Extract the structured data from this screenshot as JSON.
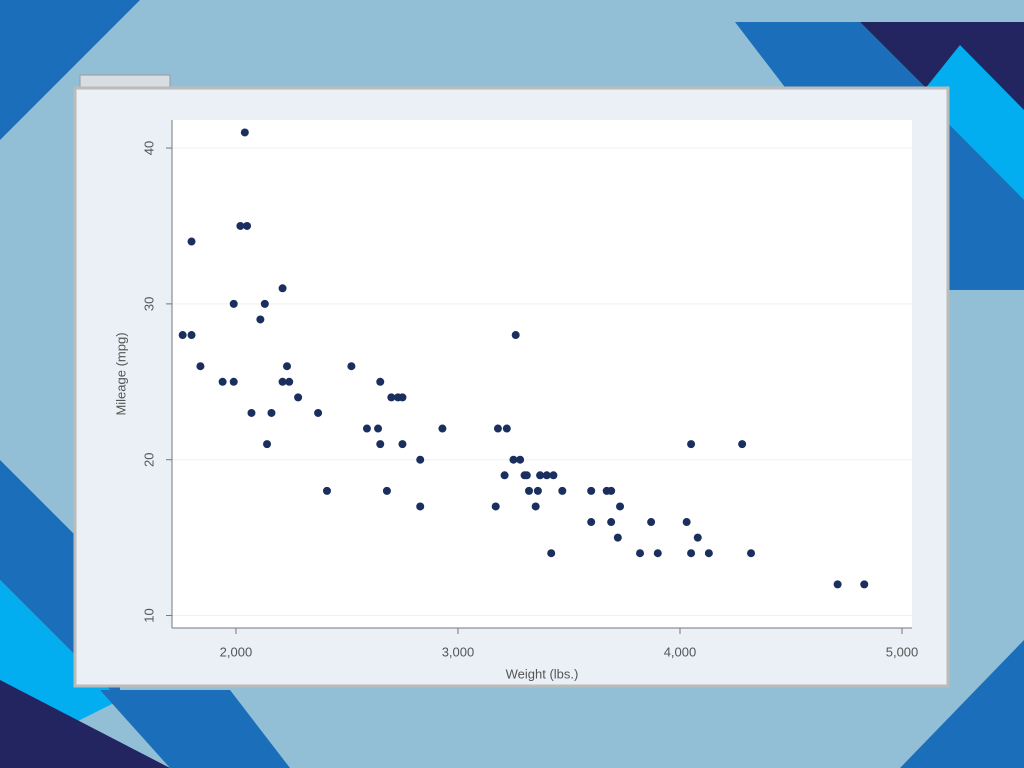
{
  "chart_data": {
    "type": "scatter",
    "x_label": "Weight (lbs.)",
    "y_label": "Mileage (mpg)",
    "color": "#1a2f5e",
    "grid": true,
    "xlim": [
      1712,
      5045
    ],
    "ylim": [
      9.2,
      41.8
    ],
    "xticks": [
      {
        "value": 2000,
        "label": "2,000"
      },
      {
        "value": 3000,
        "label": "3,000"
      },
      {
        "value": 4000,
        "label": "4,000"
      },
      {
        "value": 5000,
        "label": "5,000"
      }
    ],
    "yticks": [
      10,
      20,
      30,
      40
    ],
    "x": [
      1760,
      1800,
      1800,
      1840,
      1940,
      1990,
      1990,
      2040,
      2020,
      2050,
      2070,
      2110,
      2130,
      2140,
      2160,
      2210,
      2210,
      2230,
      2240,
      2280,
      2370,
      2410,
      2520,
      2590,
      2640,
      2650,
      2650,
      2680,
      2700,
      2730,
      2750,
      2750,
      2830,
      2830,
      2930,
      3170,
      3180,
      3220,
      3210,
      3250,
      3260,
      3280,
      3300,
      3310,
      3320,
      3350,
      3360,
      3370,
      3400,
      3430,
      3420,
      3470,
      3600,
      3600,
      3670,
      3690,
      3690,
      3720,
      3730,
      3820,
      3870,
      3900,
      4030,
      4050,
      4050,
      4080,
      4130,
      4280,
      4320,
      4710,
      4830
    ],
    "values": [
      28,
      28,
      34,
      26,
      25,
      30,
      25,
      41,
      35,
      35,
      23,
      29,
      30,
      21,
      23,
      31,
      25,
      26,
      25,
      24,
      23,
      18,
      26,
      22,
      22,
      25,
      21,
      18,
      24,
      24,
      24,
      21,
      20,
      17,
      22,
      17,
      22,
      22,
      19,
      20,
      28,
      20,
      19,
      19,
      18,
      17,
      18,
      19,
      19,
      19,
      14,
      18,
      18,
      16,
      18,
      18,
      16,
      15,
      17,
      14,
      16,
      14,
      16,
      14,
      21,
      15,
      14,
      21,
      14,
      12,
      12
    ]
  }
}
